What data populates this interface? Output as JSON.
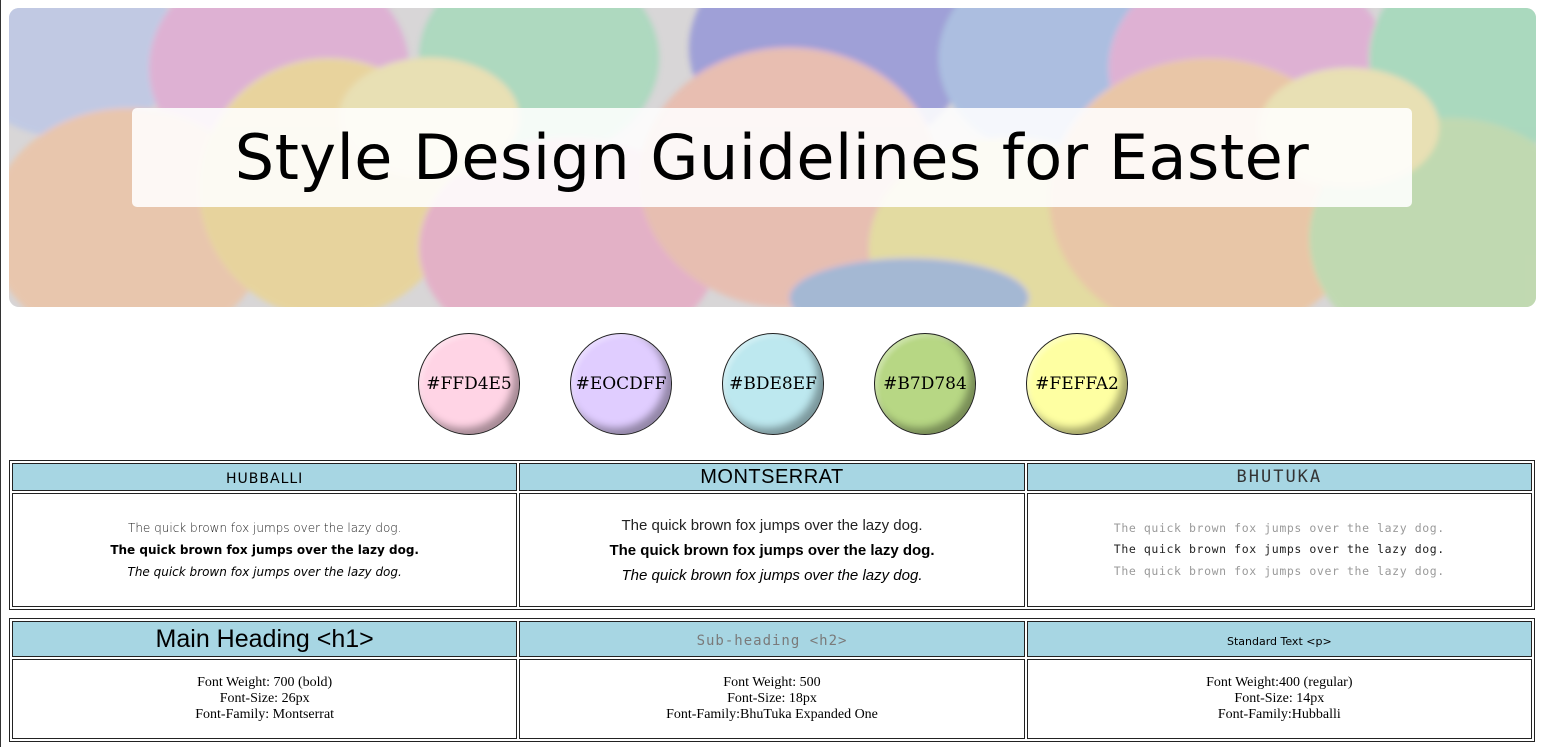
{
  "header": {
    "title": "Style Design Guidelines for Easter"
  },
  "palette": [
    {
      "label": "#FFD4E5",
      "color": "#FFD4E5"
    },
    {
      "label": "#EOCDFF",
      "color": "#E0CDFF"
    },
    {
      "label": "#BDE8EF",
      "color": "#BDE8EF"
    },
    {
      "label": "#B7D784",
      "color": "#B7D784"
    },
    {
      "label": "#FEFFA2",
      "color": "#FEFFA2"
    }
  ],
  "fonts_table": {
    "headers": [
      "HUBBALLI",
      "MONTSERRAT",
      "BHUTUKA"
    ],
    "sample_text": "The quick brown fox jumps over the lazy dog."
  },
  "styles_table": {
    "headers": [
      "Main Heading <h1>",
      "Sub-heading <h2>",
      "Standard Text <p>"
    ],
    "specs": [
      [
        "Font Weight: 700 (bold)",
        "Font-Size: 26px",
        "Font-Family: Montserrat"
      ],
      [
        "Font Weight: 500",
        "Font-Size: 18px",
        "Font-Family:BhuTuka Expanded One"
      ],
      [
        "Font Weight:400 (regular)",
        "Font-Size: 14px",
        "Font-Family:Hubballi"
      ]
    ]
  },
  "colors": {
    "table_header_bg": "#A7D6E3",
    "border": "#222222"
  }
}
